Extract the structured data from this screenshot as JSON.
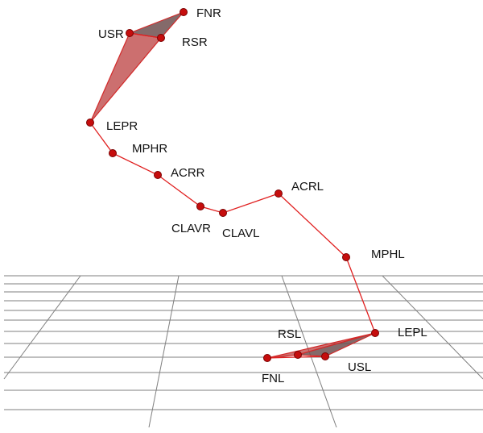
{
  "colors": {
    "joint": "#c60d0d",
    "bone": "#e01f1f",
    "hand_fill": "#b93737",
    "grid": "#7f7f7f"
  },
  "labels": {
    "fnr": "FNR",
    "usr": "USR",
    "rsr": "RSR",
    "lepr": "LEPR",
    "mphr": "MPHR",
    "acrr": "ACRR",
    "clavr": "CLAVR",
    "clavl": "CLAVL",
    "acrl": "ACRL",
    "mphl": "MPHL",
    "lepl": "LEPL",
    "rsl": "RSL",
    "usl": "USL",
    "fnl": "FNL"
  }
}
